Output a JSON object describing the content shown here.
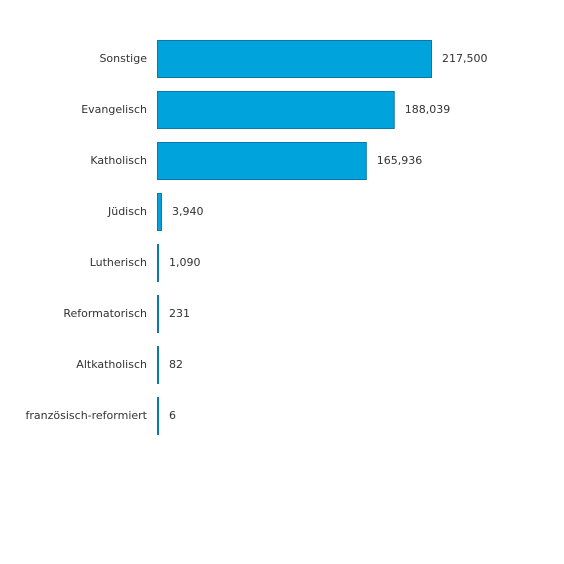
{
  "chart_data": {
    "type": "bar",
    "orientation": "horizontal",
    "categories": [
      "Sonstige",
      "Evangelisch",
      "Katholisch",
      "Jüdisch",
      "Lutherisch",
      "Reformatorisch",
      "Altkatholisch",
      "französisch-reformiert"
    ],
    "values": [
      217500,
      188039,
      165936,
      3940,
      1090,
      231,
      82,
      6
    ],
    "value_labels": [
      "217,500",
      "188,039",
      "165,936",
      "3,940",
      "1,090",
      "231",
      "82",
      "6"
    ],
    "xlim": [
      0,
      217500
    ],
    "grid": false,
    "legend": "none",
    "colors": {
      "bar_fill": "#00a3dc",
      "bar_stroke": "#0a78a8"
    }
  }
}
